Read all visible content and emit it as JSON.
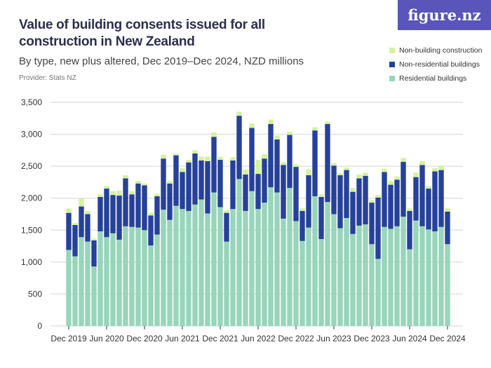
{
  "title": "Value of building consents issued for all construction in New Zealand",
  "subtitle": "By type, new plus altered, Dec 2019–Dec 2024, NZD millions",
  "provider": "Provider: Stats NZ",
  "logo": "figure.nz",
  "colors": {
    "residential": "#98d5bb",
    "non_residential": "#26419a",
    "non_building": "#d4f29b",
    "logo_bg": "#5a55b8"
  },
  "chart_data": {
    "type": "bar",
    "stacked": true,
    "title": "Value of building consents issued for all construction in New Zealand",
    "ylim": [
      0,
      3500
    ],
    "yticks": [
      "0",
      "500",
      "1,000",
      "1,500",
      "2,000",
      "2,500",
      "3,000",
      "3,500"
    ],
    "ytick_values": [
      0,
      500,
      1000,
      1500,
      2000,
      2500,
      3000,
      3500
    ],
    "xtick_labels": [
      "Dec 2019",
      "Jun 2020",
      "Dec 2020",
      "Jun 2021",
      "Dec 2021",
      "Jun 2022",
      "Dec 2022",
      "Jun 2023",
      "Dec 2023",
      "Jun 2024",
      "Dec 2024"
    ],
    "grid": true,
    "legend_position": "top-right",
    "start": "Dec 2019",
    "end": "Dec 2024",
    "frequency": "monthly",
    "series": [
      {
        "name": "Residential buildings",
        "values": [
          1190,
          1090,
          1390,
          1320,
          930,
          1480,
          1390,
          1450,
          1350,
          1560,
          1550,
          1540,
          1500,
          1260,
          1430,
          1820,
          1660,
          1880,
          1830,
          1800,
          1900,
          1980,
          1760,
          2090,
          1860,
          1320,
          1830,
          2300,
          1800,
          2110,
          1830,
          1930,
          2170,
          2090,
          1680,
          2160,
          1640,
          1330,
          1540,
          2030,
          1360,
          1940,
          1750,
          1530,
          1690,
          1440,
          1570,
          1590,
          1280,
          1050,
          1550,
          1520,
          1560,
          1710,
          1200,
          1650,
          1560,
          1510,
          1480,
          1550,
          1280
        ]
      },
      {
        "name": "Non-residential buildings",
        "values": [
          580,
          490,
          480,
          430,
          410,
          540,
          760,
          600,
          690,
          750,
          510,
          690,
          700,
          470,
          600,
          800,
          570,
          790,
          580,
          760,
          800,
          610,
          820,
          870,
          740,
          450,
          760,
          990,
          570,
          990,
          550,
          690,
          990,
          830,
          840,
          830,
          850,
          470,
          820,
          1030,
          660,
          1220,
          760,
          830,
          750,
          660,
          740,
          760,
          650,
          960,
          860,
          690,
          730,
          860,
          600,
          680,
          960,
          640,
          940,
          890,
          510
        ]
      },
      {
        "name": "Non-building construction",
        "values": [
          70,
          30,
          120,
          50,
          30,
          40,
          40,
          60,
          80,
          50,
          50,
          40,
          30,
          40,
          40,
          60,
          40,
          30,
          60,
          40,
          50,
          60,
          70,
          70,
          50,
          40,
          50,
          60,
          80,
          70,
          220,
          70,
          70,
          60,
          40,
          50,
          40,
          40,
          90,
          50,
          40,
          40,
          40,
          30,
          40,
          60,
          60,
          50,
          40,
          40,
          50,
          60,
          50,
          60,
          40,
          70,
          60,
          40,
          50,
          70,
          50
        ]
      }
    ]
  }
}
